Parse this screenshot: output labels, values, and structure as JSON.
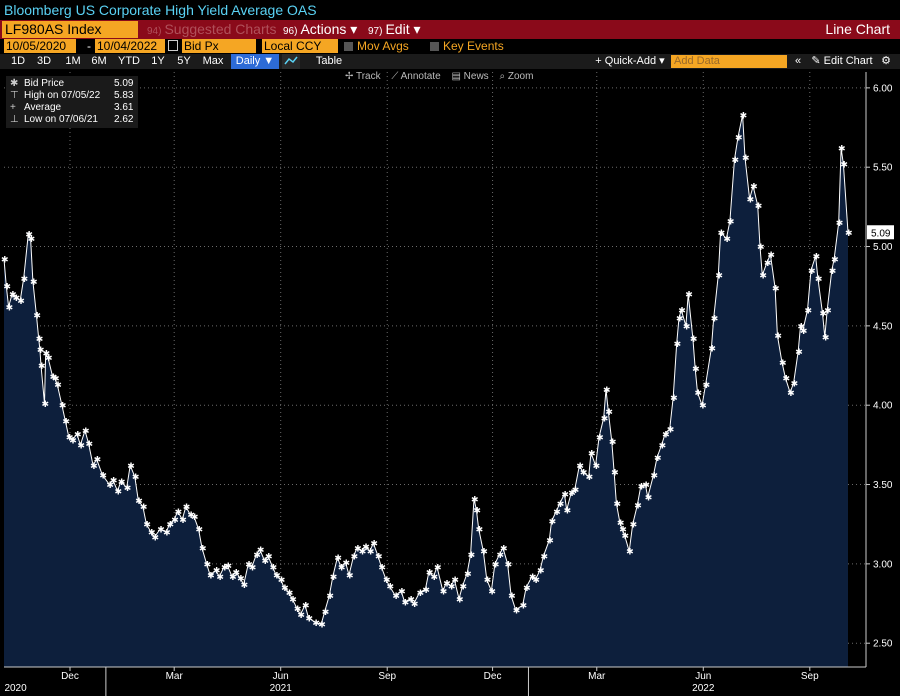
{
  "header": {
    "title": "Bloomberg US Corporate High Yield Average OAS",
    "ticker": "LF980AS Index",
    "suggested": {
      "num": "94)",
      "label": "Suggested Charts"
    },
    "actions": {
      "num": "96)",
      "label": "Actions ▾"
    },
    "edit": {
      "num": "97)",
      "label": "Edit ▾"
    },
    "chart_type": "Line Chart"
  },
  "controls": {
    "start_date": "10/05/2020",
    "dash": "-",
    "end_date": "10/04/2022",
    "field": "Bid Px",
    "currency": "Local CCY",
    "mov_avgs": "Mov Avgs",
    "key_events": "Key Events"
  },
  "periods": [
    "1D",
    "3D",
    "1M",
    "6M",
    "YTD",
    "1Y",
    "5Y",
    "Max"
  ],
  "frequency": "Daily ▼",
  "table_label": "Table",
  "quick_add": "+ Quick-Add ▾",
  "add_data_placeholder": "Add Data",
  "collapse": "«",
  "edit_chart": "✎ Edit Chart",
  "tools": [
    "✢ Track",
    "⟋ Annotate",
    "▤ News",
    "⌕ Zoom"
  ],
  "legend": [
    {
      "symbol": "✱",
      "text": "Bid Price",
      "value": "5.09"
    },
    {
      "symbol": "⊤",
      "text": "High on 07/05/22",
      "value": "5.83"
    },
    {
      "symbol": "+",
      "text": "Average",
      "value": "3.61"
    },
    {
      "symbol": "⊥",
      "text": "Low on 07/06/21",
      "value": "2.62"
    }
  ],
  "colors": {
    "accent": "#f5a623",
    "title": "#5ad2f4",
    "header_bg": "#8a0a1a",
    "fill": "#0d1f3c",
    "line": "#ffffff"
  },
  "chart_data": {
    "type": "area",
    "title": "Bloomberg US Corporate High Yield Average OAS",
    "ylim": [
      2.35,
      6.1
    ],
    "y_ticks": [
      "2.50",
      "3.00",
      "3.50",
      "4.00",
      "4.50",
      "5.00",
      "5.50",
      "6.00"
    ],
    "y_tick_values": [
      2.5,
      3.0,
      3.5,
      4.0,
      4.5,
      5.0,
      5.5,
      6.0
    ],
    "x_start": "2020-10-05",
    "x_end": "2022-10-04",
    "x_tick_labels": [
      {
        "date": "2020-12-01",
        "label": "Dec"
      },
      {
        "date": "2021-03-01",
        "label": "Mar"
      },
      {
        "date": "2021-06-01",
        "label": "Jun"
      },
      {
        "date": "2021-09-01",
        "label": "Sep"
      },
      {
        "date": "2021-12-01",
        "label": "Dec"
      },
      {
        "date": "2022-03-01",
        "label": "Mar"
      },
      {
        "date": "2022-06-01",
        "label": "Jun"
      },
      {
        "date": "2022-09-01",
        "label": "Sep"
      }
    ],
    "year_labels": [
      {
        "date": "2020-10-15",
        "label": "2020"
      },
      {
        "date": "2021-06-01",
        "label": "2021"
      },
      {
        "date": "2022-06-01",
        "label": "2022"
      }
    ],
    "series": [
      {
        "name": "Bid Price",
        "points": [
          [
            "2020-10-05",
            4.92
          ],
          [
            "2020-10-07",
            4.75
          ],
          [
            "2020-10-09",
            4.62
          ],
          [
            "2020-10-12",
            4.7
          ],
          [
            "2020-10-15",
            4.68
          ],
          [
            "2020-10-19",
            4.66
          ],
          [
            "2020-10-22",
            4.8
          ],
          [
            "2020-10-26",
            5.08
          ],
          [
            "2020-10-28",
            5.05
          ],
          [
            "2020-10-30",
            4.78
          ],
          [
            "2020-11-02",
            4.57
          ],
          [
            "2020-11-04",
            4.42
          ],
          [
            "2020-11-05",
            4.35
          ],
          [
            "2020-11-06",
            4.25
          ],
          [
            "2020-11-09",
            4.01
          ],
          [
            "2020-11-10",
            4.33
          ],
          [
            "2020-11-12",
            4.3
          ],
          [
            "2020-11-16",
            4.18
          ],
          [
            "2020-11-18",
            4.17
          ],
          [
            "2020-11-20",
            4.13
          ],
          [
            "2020-11-24",
            4.0
          ],
          [
            "2020-11-27",
            3.9
          ],
          [
            "2020-11-30",
            3.8
          ],
          [
            "2020-12-03",
            3.78
          ],
          [
            "2020-12-07",
            3.82
          ],
          [
            "2020-12-10",
            3.75
          ],
          [
            "2020-12-14",
            3.84
          ],
          [
            "2020-12-17",
            3.76
          ],
          [
            "2020-12-21",
            3.62
          ],
          [
            "2020-12-24",
            3.66
          ],
          [
            "2020-12-29",
            3.56
          ],
          [
            "2021-01-04",
            3.5
          ],
          [
            "2021-01-07",
            3.53
          ],
          [
            "2021-01-11",
            3.46
          ],
          [
            "2021-01-14",
            3.52
          ],
          [
            "2021-01-19",
            3.48
          ],
          [
            "2021-01-22",
            3.62
          ],
          [
            "2021-01-26",
            3.55
          ],
          [
            "2021-01-29",
            3.4
          ],
          [
            "2021-02-02",
            3.36
          ],
          [
            "2021-02-05",
            3.25
          ],
          [
            "2021-02-09",
            3.2
          ],
          [
            "2021-02-12",
            3.17
          ],
          [
            "2021-02-17",
            3.22
          ],
          [
            "2021-02-22",
            3.2
          ],
          [
            "2021-02-25",
            3.25
          ],
          [
            "2021-03-01",
            3.28
          ],
          [
            "2021-03-04",
            3.33
          ],
          [
            "2021-03-08",
            3.28
          ],
          [
            "2021-03-11",
            3.36
          ],
          [
            "2021-03-15",
            3.31
          ],
          [
            "2021-03-18",
            3.3
          ],
          [
            "2021-03-22",
            3.22
          ],
          [
            "2021-03-25",
            3.1
          ],
          [
            "2021-03-29",
            3.0
          ],
          [
            "2021-04-01",
            2.93
          ],
          [
            "2021-04-06",
            2.96
          ],
          [
            "2021-04-09",
            2.92
          ],
          [
            "2021-04-13",
            2.98
          ],
          [
            "2021-04-16",
            2.99
          ],
          [
            "2021-04-20",
            2.92
          ],
          [
            "2021-04-23",
            2.95
          ],
          [
            "2021-04-27",
            2.91
          ],
          [
            "2021-04-30",
            2.87
          ],
          [
            "2021-05-04",
            3.0
          ],
          [
            "2021-05-07",
            2.98
          ],
          [
            "2021-05-11",
            3.06
          ],
          [
            "2021-05-14",
            3.09
          ],
          [
            "2021-05-18",
            3.02
          ],
          [
            "2021-05-21",
            3.05
          ],
          [
            "2021-05-25",
            2.98
          ],
          [
            "2021-05-28",
            2.93
          ],
          [
            "2021-06-01",
            2.9
          ],
          [
            "2021-06-04",
            2.85
          ],
          [
            "2021-06-08",
            2.82
          ],
          [
            "2021-06-11",
            2.78
          ],
          [
            "2021-06-15",
            2.72
          ],
          [
            "2021-06-18",
            2.68
          ],
          [
            "2021-06-22",
            2.74
          ],
          [
            "2021-06-25",
            2.66
          ],
          [
            "2021-07-01",
            2.63
          ],
          [
            "2021-07-06",
            2.62
          ],
          [
            "2021-07-09",
            2.7
          ],
          [
            "2021-07-13",
            2.8
          ],
          [
            "2021-07-16",
            2.92
          ],
          [
            "2021-07-20",
            3.04
          ],
          [
            "2021-07-23",
            2.98
          ],
          [
            "2021-07-27",
            3.01
          ],
          [
            "2021-07-30",
            2.93
          ],
          [
            "2021-08-03",
            3.05
          ],
          [
            "2021-08-06",
            3.1
          ],
          [
            "2021-08-10",
            3.08
          ],
          [
            "2021-08-13",
            3.11
          ],
          [
            "2021-08-17",
            3.08
          ],
          [
            "2021-08-20",
            3.13
          ],
          [
            "2021-08-24",
            3.05
          ],
          [
            "2021-08-27",
            2.98
          ],
          [
            "2021-08-31",
            2.9
          ],
          [
            "2021-09-03",
            2.86
          ],
          [
            "2021-09-08",
            2.8
          ],
          [
            "2021-09-13",
            2.83
          ],
          [
            "2021-09-16",
            2.76
          ],
          [
            "2021-09-21",
            2.78
          ],
          [
            "2021-09-24",
            2.75
          ],
          [
            "2021-09-29",
            2.82
          ],
          [
            "2021-10-04",
            2.84
          ],
          [
            "2021-10-07",
            2.95
          ],
          [
            "2021-10-11",
            2.92
          ],
          [
            "2021-10-14",
            2.98
          ],
          [
            "2021-10-19",
            2.83
          ],
          [
            "2021-10-22",
            2.88
          ],
          [
            "2021-10-26",
            2.86
          ],
          [
            "2021-10-29",
            2.9
          ],
          [
            "2021-11-02",
            2.78
          ],
          [
            "2021-11-05",
            2.86
          ],
          [
            "2021-11-09",
            2.94
          ],
          [
            "2021-11-12",
            3.06
          ],
          [
            "2021-11-15",
            3.41
          ],
          [
            "2021-11-17",
            3.34
          ],
          [
            "2021-11-19",
            3.22
          ],
          [
            "2021-11-23",
            3.08
          ],
          [
            "2021-11-26",
            2.9
          ],
          [
            "2021-11-30",
            2.83
          ],
          [
            "2021-12-03",
            3.0
          ],
          [
            "2021-12-07",
            3.06
          ],
          [
            "2021-12-10",
            3.1
          ],
          [
            "2021-12-14",
            3.0
          ],
          [
            "2021-12-17",
            2.8
          ],
          [
            "2021-12-21",
            2.71
          ],
          [
            "2021-12-27",
            2.74
          ],
          [
            "2021-12-30",
            2.85
          ],
          [
            "2022-01-04",
            2.92
          ],
          [
            "2022-01-07",
            2.9
          ],
          [
            "2022-01-11",
            2.96
          ],
          [
            "2022-01-14",
            3.05
          ],
          [
            "2022-01-19",
            3.15
          ],
          [
            "2022-01-21",
            3.27
          ],
          [
            "2022-01-25",
            3.33
          ],
          [
            "2022-01-28",
            3.38
          ],
          [
            "2022-02-01",
            3.44
          ],
          [
            "2022-02-03",
            3.34
          ],
          [
            "2022-02-07",
            3.45
          ],
          [
            "2022-02-10",
            3.47
          ],
          [
            "2022-02-14",
            3.62
          ],
          [
            "2022-02-17",
            3.58
          ],
          [
            "2022-02-22",
            3.55
          ],
          [
            "2022-02-24",
            3.7
          ],
          [
            "2022-02-28",
            3.62
          ],
          [
            "2022-03-03",
            3.8
          ],
          [
            "2022-03-07",
            3.92
          ],
          [
            "2022-03-09",
            4.1
          ],
          [
            "2022-03-11",
            3.96
          ],
          [
            "2022-03-14",
            3.77
          ],
          [
            "2022-03-16",
            3.58
          ],
          [
            "2022-03-18",
            3.38
          ],
          [
            "2022-03-21",
            3.26
          ],
          [
            "2022-03-23",
            3.22
          ],
          [
            "2022-03-25",
            3.18
          ],
          [
            "2022-03-29",
            3.08
          ],
          [
            "2022-04-01",
            3.25
          ],
          [
            "2022-04-05",
            3.37
          ],
          [
            "2022-04-08",
            3.49
          ],
          [
            "2022-04-12",
            3.5
          ],
          [
            "2022-04-14",
            3.42
          ],
          [
            "2022-04-19",
            3.56
          ],
          [
            "2022-04-22",
            3.67
          ],
          [
            "2022-04-26",
            3.75
          ],
          [
            "2022-04-29",
            3.82
          ],
          [
            "2022-05-03",
            3.85
          ],
          [
            "2022-05-06",
            4.05
          ],
          [
            "2022-05-09",
            4.39
          ],
          [
            "2022-05-11",
            4.55
          ],
          [
            "2022-05-13",
            4.6
          ],
          [
            "2022-05-17",
            4.5
          ],
          [
            "2022-05-19",
            4.7
          ],
          [
            "2022-05-23",
            4.42
          ],
          [
            "2022-05-25",
            4.23
          ],
          [
            "2022-05-27",
            4.08
          ],
          [
            "2022-05-31",
            4.0
          ],
          [
            "2022-06-03",
            4.13
          ],
          [
            "2022-06-08",
            4.36
          ],
          [
            "2022-06-10",
            4.55
          ],
          [
            "2022-06-14",
            4.82
          ],
          [
            "2022-06-16",
            5.09
          ],
          [
            "2022-06-21",
            5.05
          ],
          [
            "2022-06-24",
            5.16
          ],
          [
            "2022-06-28",
            5.55
          ],
          [
            "2022-07-01",
            5.69
          ],
          [
            "2022-07-05",
            5.83
          ],
          [
            "2022-07-07",
            5.56
          ],
          [
            "2022-07-11",
            5.3
          ],
          [
            "2022-07-14",
            5.38
          ],
          [
            "2022-07-18",
            5.26
          ],
          [
            "2022-07-20",
            5.0
          ],
          [
            "2022-07-22",
            4.82
          ],
          [
            "2022-07-26",
            4.9
          ],
          [
            "2022-07-29",
            4.95
          ],
          [
            "2022-08-02",
            4.74
          ],
          [
            "2022-08-04",
            4.44
          ],
          [
            "2022-08-08",
            4.27
          ],
          [
            "2022-08-11",
            4.17
          ],
          [
            "2022-08-15",
            4.08
          ],
          [
            "2022-08-18",
            4.14
          ],
          [
            "2022-08-22",
            4.34
          ],
          [
            "2022-08-24",
            4.5
          ],
          [
            "2022-08-26",
            4.47
          ],
          [
            "2022-08-30",
            4.6
          ],
          [
            "2022-09-02",
            4.85
          ],
          [
            "2022-09-06",
            4.94
          ],
          [
            "2022-09-08",
            4.8
          ],
          [
            "2022-09-12",
            4.58
          ],
          [
            "2022-09-14",
            4.43
          ],
          [
            "2022-09-16",
            4.6
          ],
          [
            "2022-09-20",
            4.85
          ],
          [
            "2022-09-22",
            4.92
          ],
          [
            "2022-09-26",
            5.15
          ],
          [
            "2022-09-28",
            5.62
          ],
          [
            "2022-09-30",
            5.52
          ],
          [
            "2022-10-04",
            5.09
          ]
        ]
      }
    ],
    "last_value_label": "5.09",
    "grid": true
  }
}
